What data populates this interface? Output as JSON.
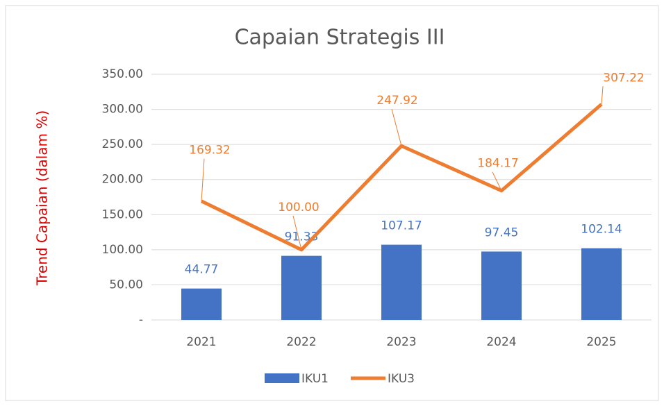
{
  "chart_data": {
    "type": "combo",
    "title": "Capaian Strategis III",
    "y_label": "Trend Capaian (dalam %)",
    "categories": [
      "2021",
      "2022",
      "2023",
      "2024",
      "2025"
    ],
    "series": [
      {
        "name": "IKU1",
        "type": "bar",
        "color": "#4472c4",
        "values": [
          44.77,
          91.33,
          107.17,
          97.45,
          102.14
        ]
      },
      {
        "name": "IKU3",
        "type": "line",
        "color": "#ed7d31",
        "values": [
          169.32,
          100,
          247.92,
          184.17,
          307.22
        ],
        "value_labels": [
          "169.32",
          "100.00",
          "247.92",
          "184.17",
          "307.22"
        ]
      }
    ],
    "ylim": [
      0,
      350
    ],
    "yticks": [
      {
        "value": 0,
        "label": "-"
      },
      {
        "value": 50,
        "label": "50.00"
      },
      {
        "value": 100,
        "label": "100.00"
      },
      {
        "value": 150,
        "label": "150.00"
      },
      {
        "value": 200,
        "label": "200.00"
      },
      {
        "value": 250,
        "label": "250.00"
      },
      {
        "value": 300,
        "label": "300.00"
      },
      {
        "value": 350,
        "label": "350.00"
      }
    ],
    "grid": true,
    "legend": "bottom"
  }
}
